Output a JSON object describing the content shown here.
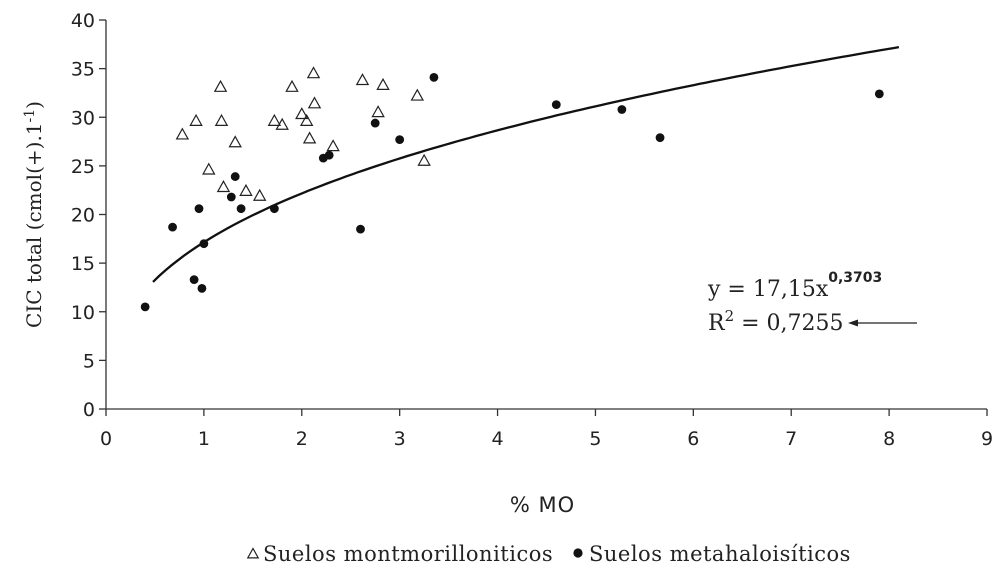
{
  "chart_data": {
    "type": "scatter",
    "xlabel": "% MO",
    "ylabel": "CIC total (cmol(+).1",
    "ylabel_superscript": "-1",
    "ylabel_close": ")",
    "xlim": [
      0,
      9
    ],
    "ylim": [
      0,
      40
    ],
    "x_ticks": [
      0,
      1,
      2,
      3,
      4,
      5,
      6,
      7,
      8,
      9
    ],
    "y_ticks": [
      0,
      5,
      10,
      15,
      20,
      25,
      30,
      35,
      40
    ],
    "grid": false,
    "legend_position": "bottom",
    "series": [
      {
        "name": "Suelos montmorilloniticos",
        "marker": "open-triangle",
        "points": [
          [
            0.78,
            28.2
          ],
          [
            0.92,
            29.6
          ],
          [
            1.05,
            24.6
          ],
          [
            1.17,
            33.1
          ],
          [
            1.18,
            29.6
          ],
          [
            1.2,
            22.8
          ],
          [
            1.32,
            27.4
          ],
          [
            1.43,
            22.4
          ],
          [
            1.57,
            21.9
          ],
          [
            1.72,
            29.6
          ],
          [
            1.8,
            29.2
          ],
          [
            1.9,
            33.1
          ],
          [
            2.0,
            30.3
          ],
          [
            2.05,
            29.6
          ],
          [
            2.08,
            27.8
          ],
          [
            2.12,
            34.5
          ],
          [
            2.13,
            31.4
          ],
          [
            2.32,
            27.0
          ],
          [
            2.62,
            33.8
          ],
          [
            2.78,
            30.5
          ],
          [
            2.83,
            33.3
          ],
          [
            3.18,
            32.2
          ],
          [
            3.25,
            25.5
          ]
        ]
      },
      {
        "name": "Suelos metahaloisíticos",
        "marker": "filled-circle",
        "points": [
          [
            0.4,
            10.5
          ],
          [
            0.68,
            18.7
          ],
          [
            0.9,
            13.3
          ],
          [
            0.95,
            20.6
          ],
          [
            0.98,
            12.4
          ],
          [
            1.0,
            17.0
          ],
          [
            1.28,
            21.8
          ],
          [
            1.32,
            23.9
          ],
          [
            1.38,
            20.6
          ],
          [
            1.72,
            20.6
          ],
          [
            2.22,
            25.8
          ],
          [
            2.28,
            26.1
          ],
          [
            2.6,
            18.5
          ],
          [
            2.75,
            29.4
          ],
          [
            3.0,
            27.7
          ],
          [
            3.35,
            34.1
          ],
          [
            4.6,
            31.3
          ],
          [
            5.27,
            30.8
          ],
          [
            5.66,
            27.9
          ],
          [
            7.9,
            32.4
          ]
        ]
      }
    ],
    "trendline": {
      "type": "power",
      "coefficient": 17.15,
      "exponent": 0.3703,
      "x_range": [
        0.48,
        8.1
      ]
    },
    "equation": {
      "prefix": "y = 17,15x",
      "exponent": "0,3703",
      "r2_label": "R",
      "r2_sup": "2",
      "r2_value": " = 0,7255"
    }
  }
}
